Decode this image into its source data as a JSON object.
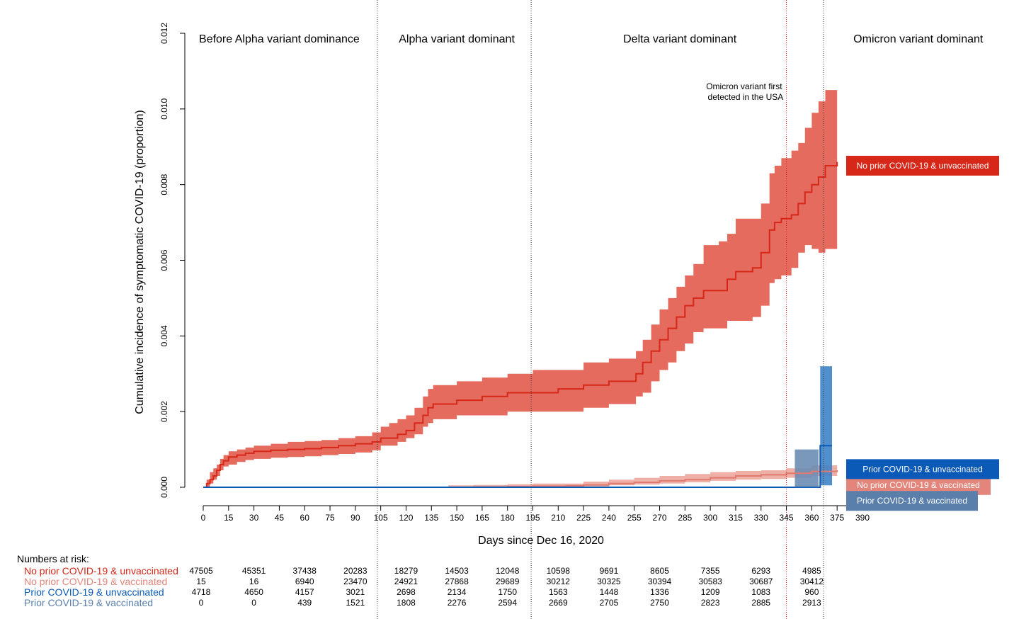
{
  "chart_data": {
    "type": "line",
    "xlabel": "Days since Dec 16, 2020",
    "ylabel": "Cumulative incidence of symptomatic COVID-19 (proportion)",
    "xlim": [
      0,
      390
    ],
    "ylim": [
      0,
      0.012
    ],
    "x_ticks": [
      0,
      15,
      30,
      45,
      60,
      75,
      90,
      105,
      120,
      135,
      150,
      165,
      180,
      195,
      210,
      225,
      240,
      255,
      270,
      285,
      300,
      315,
      330,
      345,
      360,
      375,
      390
    ],
    "y_ticks": [
      "0.000",
      "0.002",
      "0.004",
      "0.006",
      "0.008",
      "0.010",
      "0.012"
    ],
    "y_tick_values": [
      0,
      0.002,
      0.004,
      0.006,
      0.008,
      0.01,
      0.012
    ],
    "period_lines": [
      103,
      194,
      367
    ],
    "omicron_detected_day": 345,
    "periods": [
      {
        "label": "Before Alpha variant dominance",
        "center": 45
      },
      {
        "label": "Alpha variant dominant",
        "center": 150
      },
      {
        "label": "Delta variant dominant",
        "center": 282
      },
      {
        "label": "Omicron variant dominant",
        "center": 423
      }
    ],
    "annotation": {
      "line1": "Omicron variant first",
      "line2": "detected in the USA",
      "day": 320,
      "value": 0.0106
    },
    "series": [
      {
        "name": "No prior COVID-19 & unvaccinated",
        "line_color": "#d62718",
        "band_color": "#e46b5d",
        "label_bg": "#d62718",
        "label_value": 0.0085,
        "points": [
          [
            0,
            0,
            0,
            0
          ],
          [
            2,
            0.0001,
            0,
            0.0002
          ],
          [
            4,
            0.0002,
            0.0001,
            0.0004
          ],
          [
            6,
            0.0003,
            0.0002,
            0.0005
          ],
          [
            8,
            0.00045,
            0.0003,
            0.0006
          ],
          [
            10,
            0.0006,
            0.00045,
            0.00075
          ],
          [
            12,
            0.0007,
            0.00055,
            0.00085
          ],
          [
            15,
            0.0008,
            0.0006,
            0.00095
          ],
          [
            20,
            0.00085,
            0.00067,
            0.001
          ],
          [
            25,
            0.0009,
            0.00072,
            0.00105
          ],
          [
            30,
            0.00095,
            0.00075,
            0.0011
          ],
          [
            40,
            0.00098,
            0.00078,
            0.00115
          ],
          [
            50,
            0.001,
            0.0008,
            0.0012
          ],
          [
            60,
            0.00102,
            0.00082,
            0.00122
          ],
          [
            70,
            0.00105,
            0.00085,
            0.00125
          ],
          [
            80,
            0.0011,
            0.00088,
            0.0013
          ],
          [
            90,
            0.00115,
            0.00092,
            0.00135
          ],
          [
            100,
            0.0012,
            0.00098,
            0.00145
          ],
          [
            105,
            0.0013,
            0.0011,
            0.0016
          ],
          [
            110,
            0.0013,
            0.0011,
            0.0017
          ],
          [
            115,
            0.0014,
            0.0012,
            0.0018
          ],
          [
            120,
            0.0015,
            0.0013,
            0.0019
          ],
          [
            125,
            0.0017,
            0.0014,
            0.0021
          ],
          [
            130,
            0.0019,
            0.0016,
            0.0024
          ],
          [
            133,
            0.0021,
            0.0017,
            0.0026
          ],
          [
            136,
            0.0022,
            0.0018,
            0.0027
          ],
          [
            145,
            0.0022,
            0.0018,
            0.0027
          ],
          [
            150,
            0.0023,
            0.0019,
            0.0028
          ],
          [
            165,
            0.0024,
            0.0019,
            0.0029
          ],
          [
            180,
            0.0025,
            0.002,
            0.003
          ],
          [
            195,
            0.0025,
            0.002,
            0.0031
          ],
          [
            210,
            0.0026,
            0.002,
            0.0031
          ],
          [
            225,
            0.0027,
            0.0021,
            0.0033
          ],
          [
            240,
            0.0028,
            0.0022,
            0.0034
          ],
          [
            252,
            0.0028,
            0.0022,
            0.0034
          ],
          [
            256,
            0.003,
            0.0024,
            0.0036
          ],
          [
            260,
            0.0033,
            0.0025,
            0.0039
          ],
          [
            265,
            0.0036,
            0.0028,
            0.0043
          ],
          [
            270,
            0.0039,
            0.0031,
            0.0047
          ],
          [
            275,
            0.0042,
            0.0033,
            0.005
          ],
          [
            280,
            0.0045,
            0.0036,
            0.0053
          ],
          [
            285,
            0.0048,
            0.0038,
            0.0056
          ],
          [
            290,
            0.005,
            0.0041,
            0.0059
          ],
          [
            296,
            0.0052,
            0.0042,
            0.0064
          ],
          [
            305,
            0.0052,
            0.0042,
            0.0065
          ],
          [
            310,
            0.0055,
            0.0044,
            0.0067
          ],
          [
            315,
            0.0057,
            0.0044,
            0.0071
          ],
          [
            325,
            0.0058,
            0.0045,
            0.0071
          ],
          [
            330,
            0.0062,
            0.0048,
            0.0075
          ],
          [
            335,
            0.0068,
            0.0054,
            0.0083
          ],
          [
            338,
            0.007,
            0.0055,
            0.0085
          ],
          [
            342,
            0.0071,
            0.0056,
            0.0087
          ],
          [
            348,
            0.0072,
            0.0058,
            0.0089
          ],
          [
            352,
            0.0075,
            0.0062,
            0.0091
          ],
          [
            356,
            0.0078,
            0.0064,
            0.0095
          ],
          [
            360,
            0.008,
            0.0063,
            0.0099
          ],
          [
            364,
            0.0082,
            0.0062,
            0.0102
          ],
          [
            368,
            0.0085,
            0.0063,
            0.0105
          ],
          [
            375,
            0.0086,
            0.0066,
            0.0105
          ]
        ]
      },
      {
        "name": "No prior COVID-19 & vaccinated",
        "line_color": "#e07a6f",
        "band_color": "#eba69c",
        "label_bg": "#e3857a",
        "label_value": 6e-05,
        "points": [
          [
            145,
            0,
            0,
            5e-05
          ],
          [
            160,
            1e-05,
            0,
            6e-05
          ],
          [
            180,
            2e-05,
            0,
            8e-05
          ],
          [
            195,
            3e-05,
            0,
            0.0001
          ],
          [
            215,
            4e-05,
            1e-05,
            0.0001
          ],
          [
            225,
            6e-05,
            2e-05,
            0.00015
          ],
          [
            240,
            0.0001,
            5e-05,
            0.0002
          ],
          [
            255,
            0.00013,
            7e-05,
            0.00025
          ],
          [
            270,
            0.00017,
            0.0001,
            0.0003
          ],
          [
            285,
            0.0002,
            0.00013,
            0.00035
          ],
          [
            300,
            0.00025,
            0.00017,
            0.0004
          ],
          [
            315,
            0.0003,
            0.0002,
            0.00043
          ],
          [
            330,
            0.00033,
            0.00022,
            0.00045
          ],
          [
            345,
            0.00037,
            0.00025,
            0.0005
          ],
          [
            360,
            0.00042,
            0.0003,
            0.00058
          ],
          [
            375,
            0.00045,
            0.00032,
            0.0006
          ]
        ]
      },
      {
        "name": "Prior COVID-19 & unvaccinated",
        "line_color": "#0b5ab8",
        "band_color": "#3f84c8",
        "label_bg": "#0b5ab8",
        "label_value": 0.00048,
        "points": [
          [
            0,
            0,
            0,
            0
          ],
          [
            364,
            0,
            0,
            0
          ],
          [
            365,
            0.0011,
            5e-05,
            0.0032
          ],
          [
            372,
            0.0011,
            5e-05,
            0.0032
          ]
        ]
      },
      {
        "name": "Prior COVID-19 & vaccinated",
        "line_color": "#4f78a8",
        "band_color": "#6b8db3",
        "label_bg": "#5a7fab",
        "label_value": -0.00036,
        "points": [
          [
            350,
            0,
            0,
            0.001
          ],
          [
            364,
            0,
            0,
            0.001
          ]
        ]
      }
    ],
    "risk_table": {
      "title": "Numbers at risk:",
      "days": [
        0,
        30,
        60,
        90,
        120,
        150,
        180,
        210,
        240,
        270,
        300,
        330,
        360
      ],
      "rows": [
        {
          "name": "No prior COVID-19 & unvaccinated",
          "color": "#d62718",
          "values": [
            "47505",
            "45351",
            "37438",
            "20283",
            "18279",
            "14503",
            "12048",
            "10598",
            "9691",
            "8605",
            "7355",
            "6293",
            "4985"
          ]
        },
        {
          "name": "No prior COVID-19 & vaccinated",
          "color": "#e3857a",
          "values": [
            "15",
            "16",
            "6940",
            "23470",
            "24921",
            "27868",
            "29689",
            "30212",
            "30325",
            "30394",
            "30583",
            "30687",
            "30412"
          ]
        },
        {
          "name": "Prior COVID-19 & unvaccinated",
          "color": "#0b5ab8",
          "values": [
            "4718",
            "4650",
            "4157",
            "3021",
            "2698",
            "2134",
            "1750",
            "1563",
            "1448",
            "1336",
            "1209",
            "1083",
            "960"
          ]
        },
        {
          "name": "Prior COVID-19 & vaccinated",
          "color": "#5a7fab",
          "values": [
            "0",
            "0",
            "439",
            "1521",
            "1808",
            "2276",
            "2594",
            "2669",
            "2705",
            "2750",
            "2823",
            "2885",
            "2913"
          ]
        }
      ]
    }
  }
}
